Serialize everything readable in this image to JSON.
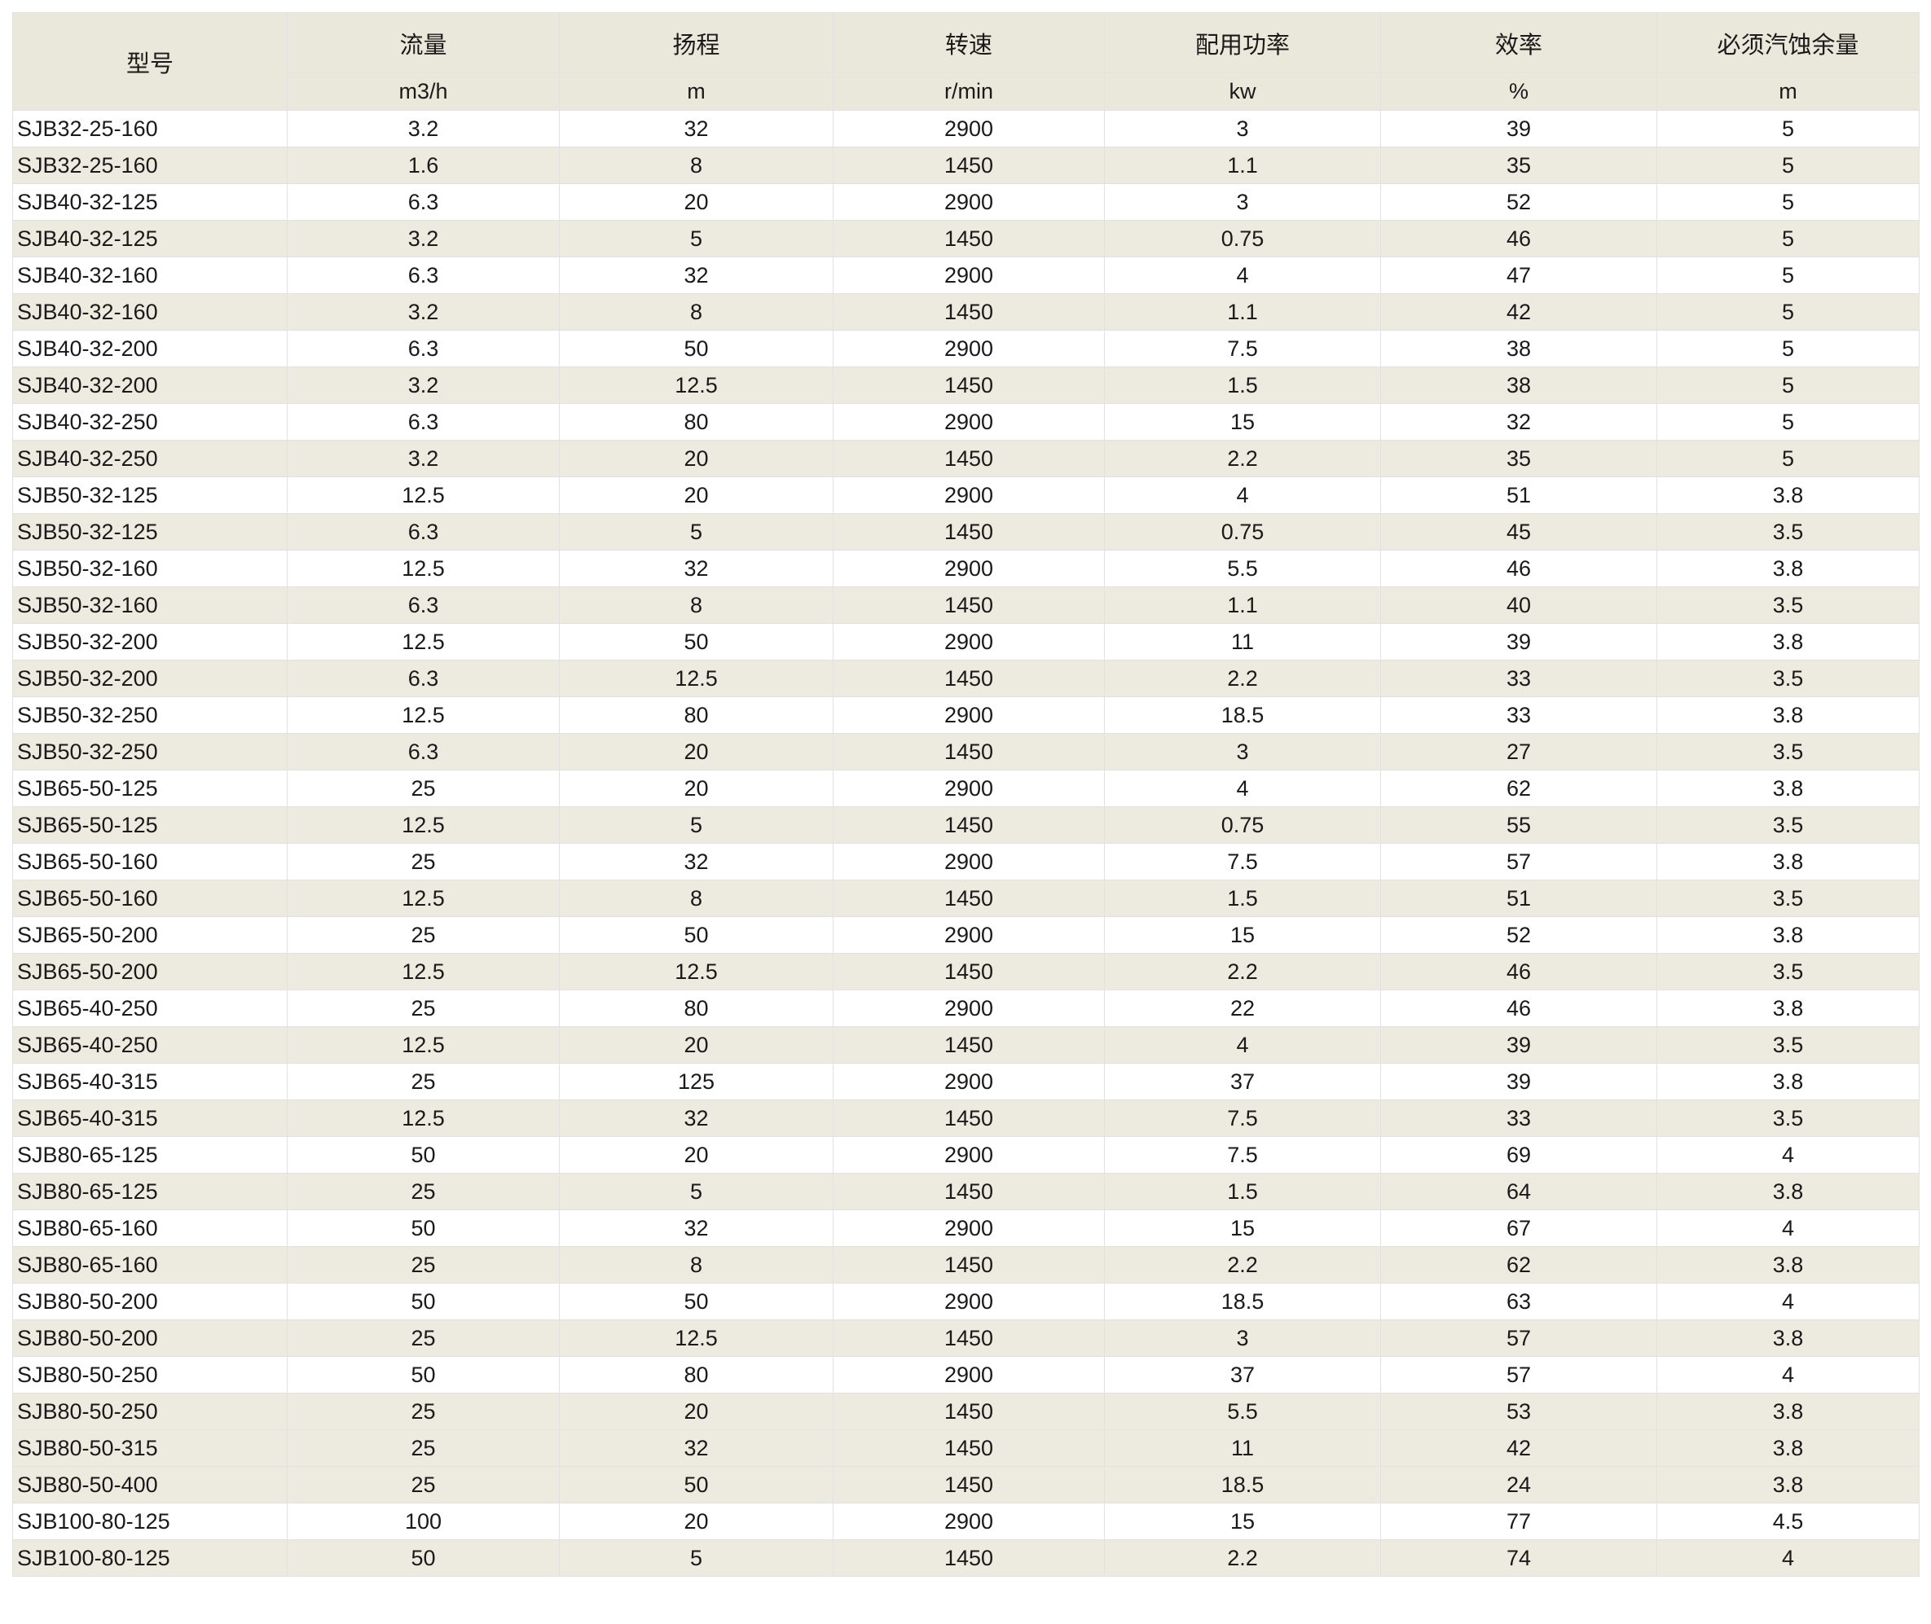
{
  "colors": {
    "page_bg": "#ffffff",
    "header_bg": "#eae8db",
    "stripe_bg": "#edebe0",
    "white_bg": "#ffffff",
    "grid": "#e2e2e2",
    "text": "#1a1a1a"
  },
  "table": {
    "columns": [
      {
        "key": "model",
        "label": "型号",
        "unit": ""
      },
      {
        "key": "flow",
        "label": "流量",
        "unit": "m3/h"
      },
      {
        "key": "head",
        "label": "扬程",
        "unit": "m"
      },
      {
        "key": "speed",
        "label": "转速",
        "unit": "r/min"
      },
      {
        "key": "power",
        "label": "配用功率",
        "unit": "kw"
      },
      {
        "key": "efficiency",
        "label": "效率",
        "unit": "%"
      },
      {
        "key": "npsh",
        "label": "必须汽蚀余量",
        "unit": "m"
      }
    ],
    "rows": [
      [
        "SJB32-25-160",
        "3.2",
        "32",
        "2900",
        "3",
        "39",
        "5"
      ],
      [
        "SJB32-25-160",
        "1.6",
        "8",
        "1450",
        "1.1",
        "35",
        "5"
      ],
      [
        "SJB40-32-125",
        "6.3",
        "20",
        "2900",
        "3",
        "52",
        "5"
      ],
      [
        "SJB40-32-125",
        "3.2",
        "5",
        "1450",
        "0.75",
        "46",
        "5"
      ],
      [
        "SJB40-32-160",
        "6.3",
        "32",
        "2900",
        "4",
        "47",
        "5"
      ],
      [
        "SJB40-32-160",
        "3.2",
        "8",
        "1450",
        "1.1",
        "42",
        "5"
      ],
      [
        "SJB40-32-200",
        "6.3",
        "50",
        "2900",
        "7.5",
        "38",
        "5"
      ],
      [
        "SJB40-32-200",
        "3.2",
        "12.5",
        "1450",
        "1.5",
        "38",
        "5"
      ],
      [
        "SJB40-32-250",
        "6.3",
        "80",
        "2900",
        "15",
        "32",
        "5"
      ],
      [
        "SJB40-32-250",
        "3.2",
        "20",
        "1450",
        "2.2",
        "35",
        "5"
      ],
      [
        "SJB50-32-125",
        "12.5",
        "20",
        "2900",
        "4",
        "51",
        "3.8"
      ],
      [
        "SJB50-32-125",
        "6.3",
        "5",
        "1450",
        "0.75",
        "45",
        "3.5"
      ],
      [
        "SJB50-32-160",
        "12.5",
        "32",
        "2900",
        "5.5",
        "46",
        "3.8"
      ],
      [
        "SJB50-32-160",
        "6.3",
        "8",
        "1450",
        "1.1",
        "40",
        "3.5"
      ],
      [
        "SJB50-32-200",
        "12.5",
        "50",
        "2900",
        "11",
        "39",
        "3.8"
      ],
      [
        "SJB50-32-200",
        "6.3",
        "12.5",
        "1450",
        "2.2",
        "33",
        "3.5"
      ],
      [
        "SJB50-32-250",
        "12.5",
        "80",
        "2900",
        "18.5",
        "33",
        "3.8"
      ],
      [
        "SJB50-32-250",
        "6.3",
        "20",
        "1450",
        "3",
        "27",
        "3.5"
      ],
      [
        "SJB65-50-125",
        "25",
        "20",
        "2900",
        "4",
        "62",
        "3.8"
      ],
      [
        "SJB65-50-125",
        "12.5",
        "5",
        "1450",
        "0.75",
        "55",
        "3.5"
      ],
      [
        "SJB65-50-160",
        "25",
        "32",
        "2900",
        "7.5",
        "57",
        "3.8"
      ],
      [
        "SJB65-50-160",
        "12.5",
        "8",
        "1450",
        "1.5",
        "51",
        "3.5"
      ],
      [
        "SJB65-50-200",
        "25",
        "50",
        "2900",
        "15",
        "52",
        "3.8"
      ],
      [
        "SJB65-50-200",
        "12.5",
        "12.5",
        "1450",
        "2.2",
        "46",
        "3.5"
      ],
      [
        "SJB65-40-250",
        "25",
        "80",
        "2900",
        "22",
        "46",
        "3.8"
      ],
      [
        "SJB65-40-250",
        "12.5",
        "20",
        "1450",
        "4",
        "39",
        "3.5"
      ],
      [
        "SJB65-40-315",
        "25",
        "125",
        "2900",
        "37",
        "39",
        "3.8"
      ],
      [
        "SJB65-40-315",
        "12.5",
        "32",
        "1450",
        "7.5",
        "33",
        "3.5"
      ],
      [
        "SJB80-65-125",
        "50",
        "20",
        "2900",
        "7.5",
        "69",
        "4"
      ],
      [
        "SJB80-65-125",
        "25",
        "5",
        "1450",
        "1.5",
        "64",
        "3.8"
      ],
      [
        "SJB80-65-160",
        "50",
        "32",
        "2900",
        "15",
        "67",
        "4"
      ],
      [
        "SJB80-65-160",
        "25",
        "8",
        "1450",
        "2.2",
        "62",
        "3.8"
      ],
      [
        "SJB80-50-200",
        "50",
        "50",
        "2900",
        "18.5",
        "63",
        "4"
      ],
      [
        "SJB80-50-200",
        "25",
        "12.5",
        "1450",
        "3",
        "57",
        "3.8"
      ],
      [
        "SJB80-50-250",
        "50",
        "80",
        "2900",
        "37",
        "57",
        "4"
      ],
      [
        "SJB80-50-250",
        "25",
        "20",
        "1450",
        "5.5",
        "53",
        "3.8"
      ],
      [
        "SJB80-50-315",
        "25",
        "32",
        "1450",
        "11",
        "42",
        "3.8"
      ],
      [
        "SJB80-50-400",
        "25",
        "50",
        "1450",
        "18.5",
        "24",
        "3.8"
      ],
      [
        "SJB100-80-125",
        "100",
        "20",
        "2900",
        "15",
        "77",
        "4.5"
      ],
      [
        "SJB100-80-125",
        "50",
        "5",
        "1450",
        "2.2",
        "74",
        "4"
      ]
    ]
  }
}
